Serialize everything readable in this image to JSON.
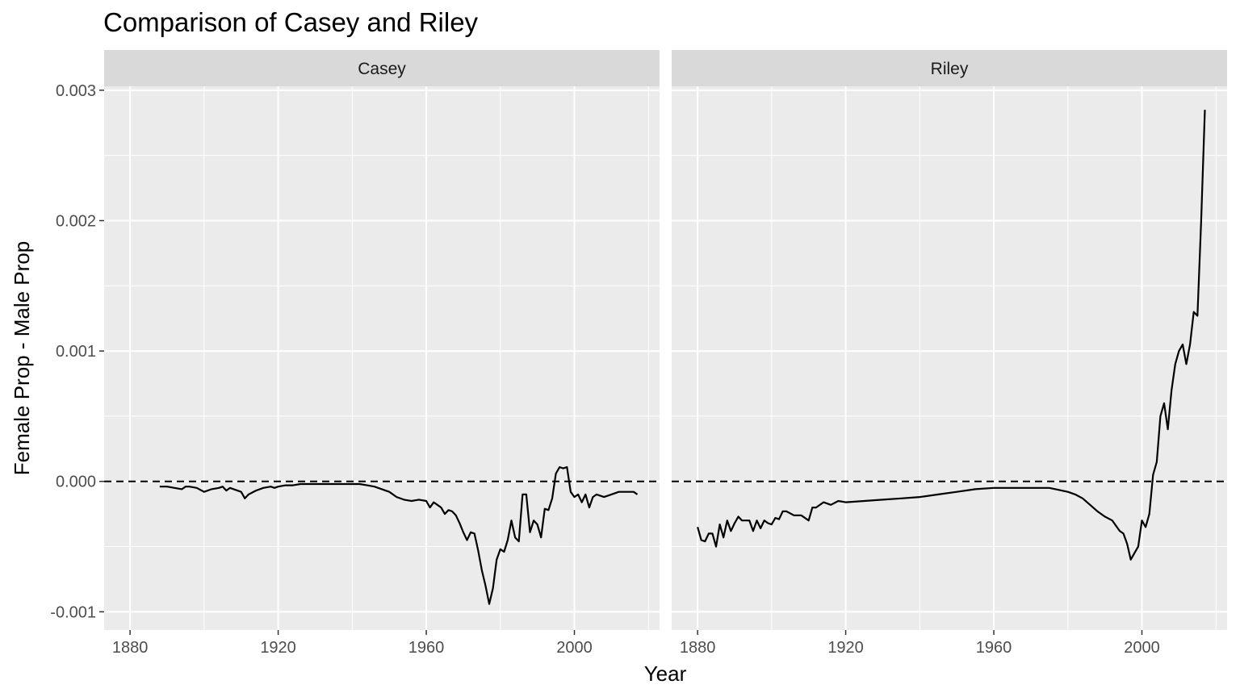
{
  "chart_data": {
    "type": "line",
    "title": "Comparison of Casey and Riley",
    "xlabel": "Year",
    "ylabel": "Female Prop - Male Prop",
    "xlim": [
      1873,
      2023
    ],
    "ylim": [
      -0.00114,
      0.00303
    ],
    "x_ticks": [
      1880,
      1920,
      1960,
      2000
    ],
    "x_tick_labels": [
      "1880",
      "1920",
      "1960",
      "2000"
    ],
    "y_ticks": [
      -0.001,
      0,
      0.001,
      0.002,
      0.003
    ],
    "y_tick_labels": [
      "-0.001",
      "0.000",
      "0.001",
      "0.002",
      "0.003"
    ],
    "reference_line": {
      "y": 0,
      "style": "dashed"
    },
    "grid": true,
    "panels": [
      {
        "name": "Casey",
        "x": [
          1888,
          1890,
          1892,
          1894,
          1895,
          1896,
          1898,
          1900,
          1902,
          1904,
          1905,
          1906,
          1907,
          1908,
          1910,
          1911,
          1912,
          1914,
          1916,
          1918,
          1919,
          1920,
          1922,
          1924,
          1926,
          1928,
          1930,
          1932,
          1934,
          1936,
          1938,
          1940,
          1942,
          1944,
          1946,
          1948,
          1950,
          1952,
          1954,
          1956,
          1958,
          1960,
          1961,
          1962,
          1963,
          1964,
          1965,
          1966,
          1967,
          1968,
          1969,
          1970,
          1971,
          1972,
          1973,
          1974,
          1975,
          1976,
          1977,
          1978,
          1979,
          1980,
          1981,
          1982,
          1983,
          1984,
          1985,
          1986,
          1987,
          1988,
          1989,
          1990,
          1991,
          1992,
          1993,
          1994,
          1995,
          1996,
          1997,
          1998,
          1999,
          2000,
          2001,
          2002,
          2003,
          2004,
          2005,
          2006,
          2008,
          2010,
          2012,
          2014,
          2016,
          2017
        ],
        "y": [
          -4e-05,
          -4e-05,
          -5e-05,
          -6e-05,
          -4e-05,
          -4e-05,
          -5e-05,
          -8e-05,
          -6e-05,
          -5e-05,
          -4e-05,
          -7e-05,
          -5e-05,
          -6e-05,
          -8e-05,
          -0.00013,
          -0.0001,
          -7e-05,
          -5e-05,
          -4e-05,
          -5e-05,
          -4e-05,
          -3e-05,
          -3e-05,
          -2e-05,
          -2e-05,
          -2e-05,
          -2e-05,
          -2e-05,
          -2e-05,
          -2e-05,
          -2e-05,
          -2e-05,
          -3e-05,
          -4e-05,
          -6e-05,
          -8e-05,
          -0.00012,
          -0.00014,
          -0.00015,
          -0.00014,
          -0.00015,
          -0.0002,
          -0.00016,
          -0.00018,
          -0.0002,
          -0.00025,
          -0.00022,
          -0.00023,
          -0.00026,
          -0.00032,
          -0.00039,
          -0.00045,
          -0.00039,
          -0.0004,
          -0.00053,
          -0.00068,
          -0.0008,
          -0.00094,
          -0.00082,
          -0.0006,
          -0.00052,
          -0.00054,
          -0.00045,
          -0.0003,
          -0.00043,
          -0.00046,
          -0.0001,
          -0.0001,
          -0.00039,
          -0.0003,
          -0.00033,
          -0.00043,
          -0.00021,
          -0.00022,
          -0.00013,
          6e-05,
          0.00011,
          0.0001,
          0.00011,
          -8e-05,
          -0.00012,
          -0.0001,
          -0.00016,
          -0.0001,
          -0.0002,
          -0.00012,
          -0.0001,
          -0.00012,
          -0.0001,
          -8e-05,
          -8e-05,
          -8e-05,
          -0.0001
        ]
      },
      {
        "name": "Riley",
        "x": [
          1880,
          1881,
          1882,
          1883,
          1884,
          1885,
          1886,
          1887,
          1888,
          1889,
          1890,
          1891,
          1892,
          1893,
          1894,
          1895,
          1896,
          1897,
          1898,
          1899,
          1900,
          1901,
          1902,
          1903,
          1904,
          1906,
          1908,
          1910,
          1911,
          1912,
          1914,
          1916,
          1918,
          1920,
          1925,
          1930,
          1935,
          1940,
          1945,
          1950,
          1955,
          1960,
          1965,
          1970,
          1975,
          1980,
          1982,
          1984,
          1986,
          1988,
          1990,
          1992,
          1994,
          1995,
          1996,
          1997,
          1998,
          1999,
          2000,
          2001,
          2002,
          2003,
          2004,
          2005,
          2006,
          2007,
          2008,
          2009,
          2010,
          2011,
          2012,
          2013,
          2014,
          2015,
          2016,
          2017
        ],
        "y": [
          -0.00035,
          -0.00045,
          -0.00046,
          -0.0004,
          -0.0004,
          -0.0005,
          -0.00033,
          -0.00043,
          -0.0003,
          -0.00038,
          -0.00032,
          -0.00027,
          -0.0003,
          -0.0003,
          -0.0003,
          -0.00038,
          -0.0003,
          -0.00036,
          -0.0003,
          -0.00032,
          -0.00033,
          -0.00028,
          -0.00029,
          -0.00023,
          -0.00023,
          -0.00026,
          -0.00026,
          -0.0003,
          -0.0002,
          -0.0002,
          -0.00016,
          -0.00018,
          -0.00015,
          -0.00016,
          -0.00015,
          -0.00014,
          -0.00013,
          -0.00012,
          -0.0001,
          -8e-05,
          -6e-05,
          -5e-05,
          -5e-05,
          -5e-05,
          -5e-05,
          -8e-05,
          -0.0001,
          -0.00013,
          -0.00018,
          -0.00023,
          -0.00027,
          -0.0003,
          -0.00038,
          -0.0004,
          -0.00048,
          -0.0006,
          -0.00055,
          -0.0005,
          -0.0003,
          -0.00035,
          -0.00025,
          5e-05,
          0.00015,
          0.0005,
          0.0006,
          0.0004,
          0.0007,
          0.0009,
          0.001,
          0.00105,
          0.0009,
          0.00105,
          0.0013,
          0.00127,
          0.002,
          0.00285
        ]
      }
    ]
  }
}
